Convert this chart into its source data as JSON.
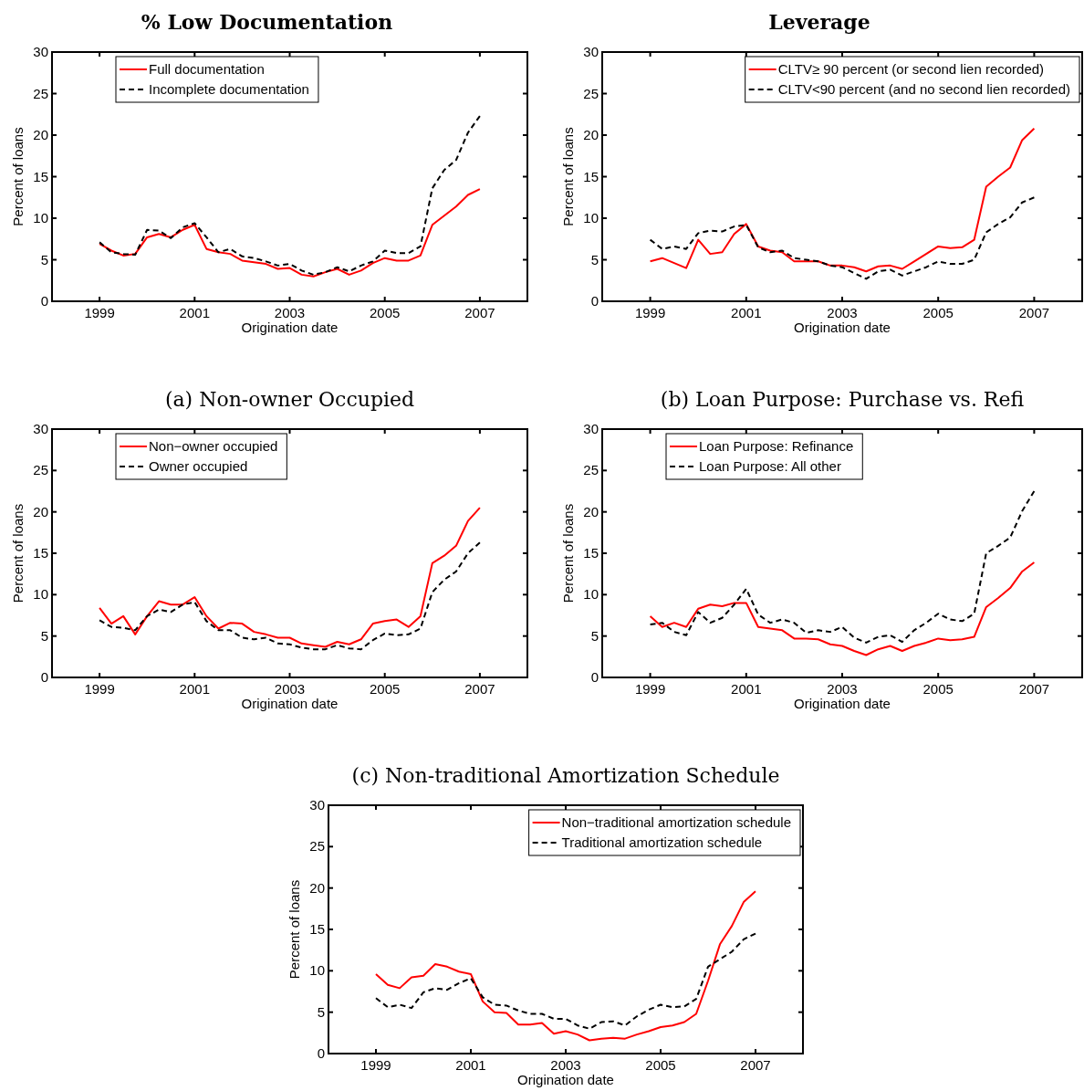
{
  "chart_data": [
    {
      "type": "line",
      "title": "% Low Documentation",
      "xlabel": "Origination date",
      "ylabel": "Percent of loans",
      "xlim": [
        1998,
        2008
      ],
      "xticks": [
        1999,
        2001,
        2003,
        2005,
        2007
      ],
      "ylim": [
        0,
        30
      ],
      "yticks": [
        0,
        5,
        10,
        15,
        20,
        25,
        30
      ],
      "legend": "top left",
      "x": [
        1999,
        1999.25,
        1999.5,
        1999.75,
        2000,
        2000.25,
        2000.5,
        2000.75,
        2001,
        2001.25,
        2001.5,
        2001.75,
        2002,
        2002.25,
        2002.5,
        2002.75,
        2003,
        2003.25,
        2003.5,
        2003.75,
        2004,
        2004.25,
        2004.5,
        2004.75,
        2005,
        2005.25,
        2005.5,
        2005.75,
        2006,
        2006.25,
        2006.5,
        2006.75,
        2007
      ],
      "series": [
        {
          "name": "Full documentation",
          "color": "#ff0000",
          "line_style": "solid",
          "values": [
            6.9,
            6.1,
            5.5,
            5.7,
            7.7,
            8.1,
            7.7,
            8.6,
            9.2,
            6.3,
            5.9,
            5.7,
            4.9,
            4.7,
            4.5,
            3.9,
            4.0,
            3.2,
            3.0,
            3.5,
            3.9,
            3.2,
            3.7,
            4.6,
            5.2,
            4.9,
            4.9,
            5.5,
            9.2,
            10.3,
            11.4,
            12.8,
            13.5
          ]
        },
        {
          "name": "Incomplete documentation",
          "color": "#000000",
          "line_style": "dashed",
          "values": [
            7.1,
            5.9,
            5.7,
            5.6,
            8.6,
            8.5,
            7.6,
            8.9,
            9.4,
            7.7,
            5.9,
            6.3,
            5.4,
            5.2,
            4.8,
            4.3,
            4.5,
            3.7,
            3.2,
            3.5,
            4.1,
            3.6,
            4.3,
            4.8,
            6.1,
            5.8,
            5.8,
            6.6,
            13.6,
            15.8,
            17.0,
            20.3,
            22.3
          ]
        }
      ]
    },
    {
      "type": "line",
      "title": "Leverage",
      "xlabel": "Origination date",
      "ylabel": "Percent of loans",
      "xlim": [
        1998,
        2008
      ],
      "xticks": [
        1999,
        2001,
        2003,
        2005,
        2007
      ],
      "ylim": [
        0,
        30
      ],
      "yticks": [
        0,
        5,
        10,
        15,
        20,
        25,
        30
      ],
      "legend": "top right",
      "x": [
        1999,
        1999.25,
        1999.5,
        1999.75,
        2000,
        2000.25,
        2000.5,
        2000.75,
        2001,
        2001.25,
        2001.5,
        2001.75,
        2002,
        2002.25,
        2002.5,
        2002.75,
        2003,
        2003.25,
        2003.5,
        2003.75,
        2004,
        2004.25,
        2004.5,
        2004.75,
        2005,
        2005.25,
        2005.5,
        2005.75,
        2006,
        2006.25,
        2006.5,
        2006.75,
        2007
      ],
      "series": [
        {
          "name": "CLTV≥ 90 percent (or second lien recorded)",
          "color": "#ff0000",
          "line_style": "solid",
          "values": [
            4.8,
            5.2,
            4.6,
            4.0,
            7.4,
            5.7,
            5.9,
            8.1,
            9.3,
            6.6,
            6.1,
            5.9,
            4.8,
            4.8,
            4.8,
            4.3,
            4.3,
            4.1,
            3.6,
            4.2,
            4.3,
            3.9,
            4.8,
            5.7,
            6.6,
            6.4,
            6.5,
            7.4,
            13.8,
            15.0,
            16.1,
            19.4,
            20.8
          ]
        },
        {
          "name": "CLTV<90 percent (and no second lien recorded)",
          "color": "#000000",
          "line_style": "dashed",
          "values": [
            7.4,
            6.3,
            6.6,
            6.3,
            8.2,
            8.5,
            8.4,
            9.0,
            9.2,
            6.5,
            5.9,
            6.1,
            5.2,
            5.0,
            4.8,
            4.3,
            4.1,
            3.4,
            2.7,
            3.6,
            3.8,
            3.1,
            3.6,
            4.1,
            4.8,
            4.5,
            4.5,
            5.0,
            8.3,
            9.3,
            10.1,
            11.9,
            12.5
          ]
        }
      ]
    },
    {
      "type": "line",
      "title": "(a) Non-owner Occupied",
      "xlabel": "Origination date",
      "ylabel": "Percent of loans",
      "xlim": [
        1998,
        2008
      ],
      "xticks": [
        1999,
        2001,
        2003,
        2005,
        2007
      ],
      "ylim": [
        0,
        30
      ],
      "yticks": [
        0,
        5,
        10,
        15,
        20,
        25,
        30
      ],
      "legend": "top left",
      "x": [
        1999,
        1999.25,
        1999.5,
        1999.75,
        2000,
        2000.25,
        2000.5,
        2000.75,
        2001,
        2001.25,
        2001.5,
        2001.75,
        2002,
        2002.25,
        2002.5,
        2002.75,
        2003,
        2003.25,
        2003.5,
        2003.75,
        2004,
        2004.25,
        2004.5,
        2004.75,
        2005,
        2005.25,
        2005.5,
        2005.75,
        2006,
        2006.25,
        2006.5,
        2006.75,
        2007
      ],
      "series": [
        {
          "name": "Non−owner occupied",
          "color": "#ff0000",
          "line_style": "solid",
          "values": [
            8.4,
            6.5,
            7.4,
            5.2,
            7.4,
            9.2,
            8.8,
            8.8,
            9.7,
            7.4,
            5.9,
            6.6,
            6.5,
            5.5,
            5.2,
            4.8,
            4.8,
            4.1,
            3.9,
            3.7,
            4.3,
            4.0,
            4.6,
            6.5,
            6.8,
            7.0,
            6.1,
            7.4,
            13.8,
            14.7,
            15.9,
            18.9,
            20.5
          ]
        },
        {
          "name": "Owner occupied",
          "color": "#000000",
          "line_style": "dashed",
          "values": [
            6.9,
            6.1,
            6.0,
            5.7,
            7.4,
            8.2,
            7.9,
            8.8,
            9.1,
            6.8,
            5.7,
            5.7,
            4.8,
            4.6,
            4.8,
            4.1,
            4.0,
            3.6,
            3.4,
            3.4,
            3.9,
            3.5,
            3.4,
            4.5,
            5.3,
            5.1,
            5.2,
            5.9,
            10.3,
            11.8,
            12.8,
            15.0,
            16.3
          ]
        }
      ]
    },
    {
      "type": "line",
      "title": "(b) Loan Purpose: Purchase vs. Refi",
      "xlabel": "Origination date",
      "ylabel": "Percent of loans",
      "xlim": [
        1998,
        2008
      ],
      "xticks": [
        1999,
        2001,
        2003,
        2005,
        2007
      ],
      "ylim": [
        0,
        30
      ],
      "yticks": [
        0,
        5,
        10,
        15,
        20,
        25,
        30
      ],
      "legend": "top left",
      "x": [
        1999,
        1999.25,
        1999.5,
        1999.75,
        2000,
        2000.25,
        2000.5,
        2000.75,
        2001,
        2001.25,
        2001.5,
        2001.75,
        2002,
        2002.25,
        2002.5,
        2002.75,
        2003,
        2003.25,
        2003.5,
        2003.75,
        2004,
        2004.25,
        2004.5,
        2004.75,
        2005,
        2005.25,
        2005.5,
        2005.75,
        2006,
        2006.25,
        2006.5,
        2006.75,
        2007
      ],
      "series": [
        {
          "name": "Loan Purpose: Refinance",
          "color": "#ff0000",
          "line_style": "solid",
          "values": [
            7.4,
            6.1,
            6.6,
            6.1,
            8.3,
            8.8,
            8.6,
            9.0,
            9.0,
            6.1,
            5.9,
            5.7,
            4.7,
            4.7,
            4.6,
            4.0,
            3.8,
            3.2,
            2.7,
            3.4,
            3.8,
            3.2,
            3.8,
            4.2,
            4.7,
            4.5,
            4.6,
            4.9,
            8.5,
            9.6,
            10.8,
            12.8,
            13.9
          ]
        },
        {
          "name": "Loan Purpose: All other",
          "color": "#000000",
          "line_style": "dashed",
          "values": [
            6.4,
            6.6,
            5.5,
            5.1,
            7.9,
            6.6,
            7.2,
            8.8,
            10.7,
            7.6,
            6.6,
            7.0,
            6.6,
            5.4,
            5.7,
            5.5,
            6.1,
            4.8,
            4.2,
            4.9,
            5.1,
            4.3,
            5.7,
            6.6,
            7.7,
            7.0,
            6.8,
            7.7,
            15.0,
            15.9,
            16.9,
            20.1,
            22.5
          ]
        }
      ]
    },
    {
      "type": "line",
      "title": "(c) Non-traditional Amortization Schedule",
      "xlabel": "Origination date",
      "ylabel": "Percent of loans",
      "xlim": [
        1998,
        2008
      ],
      "xticks": [
        1999,
        2001,
        2003,
        2005,
        2007
      ],
      "ylim": [
        0,
        30
      ],
      "yticks": [
        0,
        5,
        10,
        15,
        20,
        25,
        30
      ],
      "legend": "top right",
      "x": [
        1999,
        1999.25,
        1999.5,
        1999.75,
        2000,
        2000.25,
        2000.5,
        2000.75,
        2001,
        2001.25,
        2001.5,
        2001.75,
        2002,
        2002.25,
        2002.5,
        2002.75,
        2003,
        2003.25,
        2003.5,
        2003.75,
        2004,
        2004.25,
        2004.5,
        2004.75,
        2005,
        2005.25,
        2005.5,
        2005.75,
        2006,
        2006.25,
        2006.5,
        2006.75,
        2007
      ],
      "series": [
        {
          "name": "Non−traditional amortization schedule",
          "color": "#ff0000",
          "line_style": "solid",
          "values": [
            9.6,
            8.3,
            7.9,
            9.2,
            9.4,
            10.8,
            10.5,
            9.9,
            9.6,
            6.3,
            5.0,
            4.9,
            3.5,
            3.5,
            3.7,
            2.4,
            2.7,
            2.3,
            1.6,
            1.8,
            1.9,
            1.8,
            2.3,
            2.7,
            3.2,
            3.4,
            3.8,
            4.8,
            8.8,
            13.2,
            15.4,
            18.3,
            19.6
          ]
        },
        {
          "name": "Traditional amortization schedule",
          "color": "#000000",
          "line_style": "dashed",
          "values": [
            6.7,
            5.6,
            5.9,
            5.5,
            7.4,
            7.9,
            7.7,
            8.5,
            9.1,
            6.8,
            5.9,
            5.8,
            5.2,
            4.8,
            4.8,
            4.2,
            4.2,
            3.4,
            3.0,
            3.8,
            3.9,
            3.4,
            4.5,
            5.3,
            5.9,
            5.6,
            5.7,
            6.6,
            10.5,
            11.4,
            12.3,
            13.8,
            14.5
          ]
        }
      ]
    }
  ]
}
